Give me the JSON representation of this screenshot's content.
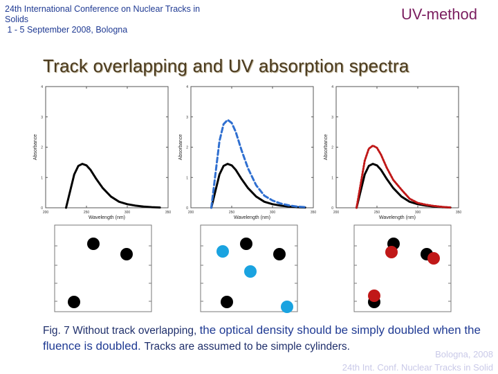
{
  "header": {
    "conference_lines": [
      "24th International Conference on Nuclear Tracks in",
      "Solids",
      " 1 - 5 September 2008, Bologna"
    ],
    "method": "UV-method",
    "title": "Track overlapping and UV absorption spectra"
  },
  "plots": {
    "ylabel": "Absorbance",
    "xlabel": "Wavelength (nm)",
    "y_ticks": [
      "0",
      "1",
      "2",
      "3",
      "4"
    ],
    "x_ticks": [
      "200",
      "250",
      "300",
      "350"
    ],
    "xlim": [
      200,
      350
    ],
    "ylim": [
      0,
      4
    ],
    "colors": {
      "single": "#000000",
      "overlap_blue": "#2f6fd0",
      "overlap_red": "#c01818",
      "axis": "#555555"
    }
  },
  "chart_data": [
    {
      "type": "line",
      "xlabel": "Wavelength (nm)",
      "ylabel": "Absorbance",
      "xlim": [
        200,
        350
      ],
      "ylim": [
        0,
        4
      ],
      "x": [
        225,
        235,
        240,
        245,
        250,
        255,
        262,
        270,
        280,
        290,
        300,
        310,
        320,
        330,
        340
      ],
      "series": [
        {
          "values": [
            0,
            1.1,
            1.38,
            1.45,
            1.4,
            1.25,
            0.95,
            0.65,
            0.37,
            0.2,
            0.12,
            0.07,
            0.04,
            0.02,
            0.01
          ]
        }
      ]
    },
    {
      "type": "line",
      "xlabel": "Wavelength (nm)",
      "ylabel": "Absorbance",
      "xlim": [
        200,
        350
      ],
      "ylim": [
        0,
        4
      ],
      "x": [
        225,
        235,
        240,
        245,
        250,
        255,
        262,
        270,
        280,
        290,
        300,
        310,
        320,
        330,
        340
      ],
      "series": [
        {
          "values": [
            0,
            1.1,
            1.38,
            1.45,
            1.4,
            1.25,
            0.95,
            0.65,
            0.37,
            0.2,
            0.12,
            0.07,
            0.04,
            0.02,
            0.01
          ]
        },
        {
          "values": [
            0,
            2.2,
            2.76,
            2.9,
            2.8,
            2.5,
            1.9,
            1.3,
            0.74,
            0.4,
            0.24,
            0.14,
            0.08,
            0.04,
            0.02
          ]
        }
      ]
    },
    {
      "type": "line",
      "xlabel": "Wavelength (nm)",
      "ylabel": "Absorbance",
      "xlim": [
        200,
        350
      ],
      "ylim": [
        0,
        4
      ],
      "x": [
        225,
        235,
        240,
        245,
        250,
        255,
        262,
        270,
        280,
        290,
        300,
        310,
        320,
        330,
        340
      ],
      "series": [
        {
          "values": [
            0,
            1.1,
            1.38,
            1.45,
            1.4,
            1.25,
            0.95,
            0.65,
            0.37,
            0.2,
            0.12,
            0.07,
            0.04,
            0.02,
            0.01
          ]
        },
        {
          "values": [
            0,
            1.55,
            1.95,
            2.05,
            1.98,
            1.75,
            1.32,
            0.92,
            0.6,
            0.3,
            0.16,
            0.1,
            0.06,
            0.03,
            0.01
          ]
        }
      ]
    }
  ],
  "caption": {
    "part1": "Fig. 7 Without track overlapping, ",
    "part2": "the optical density should be  simply doubled when the fluence is doubled. ",
    "part3": "Tracks are assumed to be simple cylinders."
  },
  "footer": {
    "line1": "Bologna,  2008",
    "line2": "24th Int. Conf. Nuclear Tracks in Solid"
  }
}
